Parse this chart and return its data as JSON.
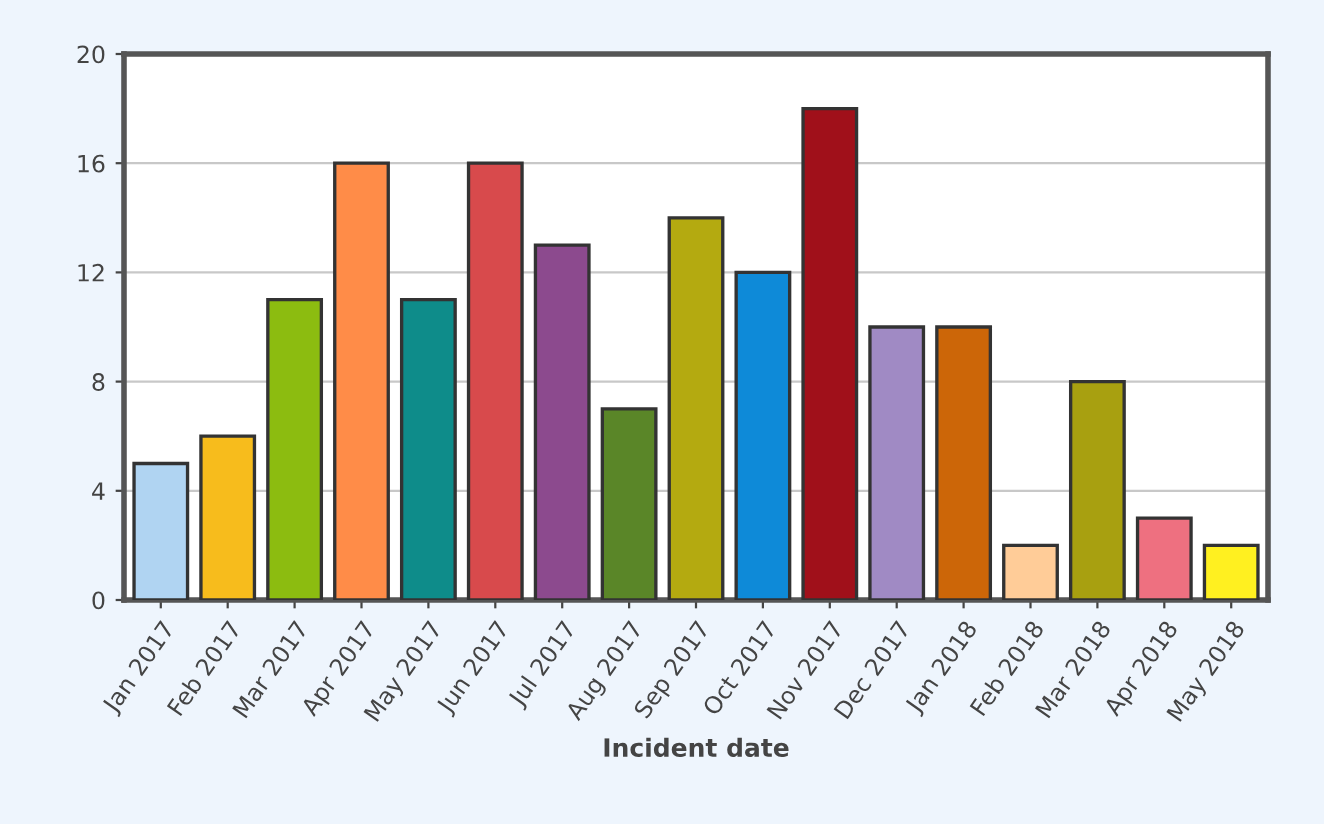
{
  "chart_data": {
    "type": "bar",
    "xlabel": "Incident date",
    "categories": [
      "Jan 2017",
      "Feb 2017",
      "Mar 2017",
      "Apr 2017",
      "May 2017",
      "Jun 2017",
      "Jul 2017",
      "Aug 2017",
      "Sep 2017",
      "Oct 2017",
      "Nov 2017",
      "Dec 2017",
      "Jan 2018",
      "Feb 2018",
      "Mar 2018",
      "Apr 2018",
      "May 2018"
    ],
    "values": [
      5,
      6,
      11,
      16,
      11,
      16,
      13,
      7,
      14,
      12,
      18,
      10,
      10,
      2,
      8,
      3,
      2
    ],
    "colors": [
      "#b0d4f2",
      "#f7bc1c",
      "#8cbc10",
      "#ff8c48",
      "#0e8c8a",
      "#d84a4c",
      "#8c4a8e",
      "#5a8628",
      "#b4aa10",
      "#0e8ad8",
      "#a0101a",
      "#a08ac4",
      "#cc6608",
      "#ffcc98",
      "#a8a010",
      "#ee7080",
      "#fff020"
    ],
    "ylim": [
      0,
      20
    ],
    "yticks": [
      0,
      4,
      8,
      12,
      16,
      20
    ],
    "grid": "y"
  }
}
